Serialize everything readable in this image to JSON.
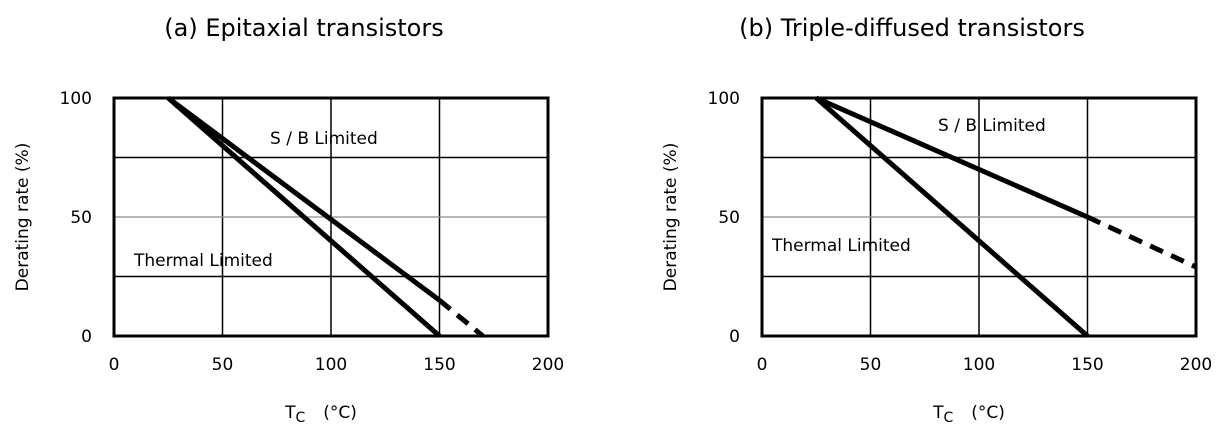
{
  "chart_data": [
    {
      "type": "line",
      "title": "(a) Epitaxial transistors",
      "xlabel_main": "T",
      "xlabel_sub": "C",
      "xlabel_unit": "(°C)",
      "ylabel": "Derating rate (%)",
      "xlim": [
        0,
        200
      ],
      "ylim": [
        0,
        100
      ],
      "xticks": [
        "0",
        "50",
        "100",
        "150",
        "200"
      ],
      "yticks": [
        "0",
        "50",
        "100"
      ],
      "grid": true,
      "series": [
        {
          "name": "Thermal Limited",
          "x": [
            25,
            150
          ],
          "y": [
            100,
            0
          ],
          "dashed_extension": null
        },
        {
          "name": "S / B Limited",
          "x": [
            25,
            150
          ],
          "y": [
            100,
            15
          ],
          "dashed_extension": {
            "x": [
              150,
              170
            ],
            "y": [
              15,
              0
            ]
          }
        }
      ]
    },
    {
      "type": "line",
      "title": "(b) Triple-diffused transistors",
      "xlabel_main": "T",
      "xlabel_sub": "C",
      "xlabel_unit": "(°C)",
      "ylabel": "Derating rate (%)",
      "xlim": [
        0,
        200
      ],
      "ylim": [
        0,
        100
      ],
      "xticks": [
        "0",
        "50",
        "100",
        "150",
        "200"
      ],
      "yticks": [
        "0",
        "50",
        "100"
      ],
      "grid": true,
      "series": [
        {
          "name": "Thermal Limited",
          "x": [
            25,
            150
          ],
          "y": [
            100,
            0
          ],
          "dashed_extension": null
        },
        {
          "name": "S / B Limited",
          "x": [
            25,
            150
          ],
          "y": [
            100,
            50
          ],
          "dashed_extension": {
            "x": [
              150,
              200
            ],
            "y": [
              50,
              29
            ]
          }
        }
      ]
    }
  ],
  "labels": {
    "a": {
      "sb": "S / B Limited",
      "thermal": "Thermal Limited"
    },
    "b": {
      "sb": "S / B Limited",
      "thermal": "Thermal Limited"
    }
  }
}
